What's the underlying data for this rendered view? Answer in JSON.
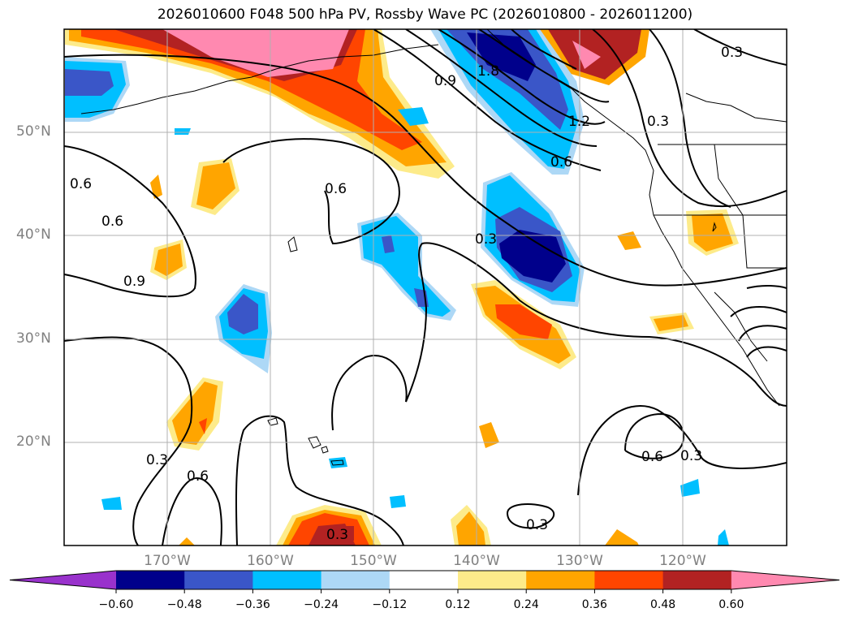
{
  "title": "2026010600 F048 500 hPa PV, Rossby Wave PC (2026010800 - 2026011200)",
  "lat_labels": [
    "50°N",
    "40°N",
    "30°N",
    "20°N"
  ],
  "lon_labels": [
    "170°W",
    "160°W",
    "150°W",
    "140°W",
    "130°W",
    "120°W"
  ],
  "contour_labels": [
    "0.3",
    "0.6",
    "0.9",
    "1.2",
    "1.8"
  ],
  "colorbar": {
    "ticks": [
      "−0.60",
      "−0.48",
      "−0.36",
      "−0.24",
      "−0.12",
      "0.12",
      "0.24",
      "0.36",
      "0.48",
      "0.60"
    ],
    "colors": [
      "#9932cc",
      "#00008b",
      "#3a56c8",
      "#00bfff",
      "#add8f6",
      "#ffffff",
      "#fdeb8a",
      "#ffa500",
      "#ff4500",
      "#b22222",
      "#ff89b0"
    ]
  }
}
